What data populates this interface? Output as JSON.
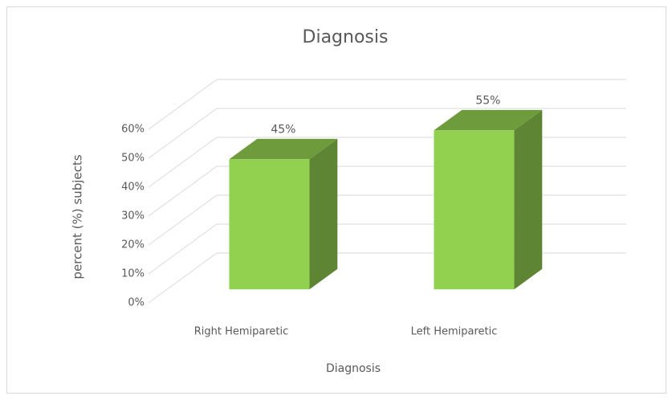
{
  "chart_data": {
    "type": "bar3d",
    "title": "Diagnosis",
    "categories": [
      "Right Hemiparetic",
      "Left Hemiparetic"
    ],
    "values": [
      45,
      55
    ],
    "value_labels": [
      "45%",
      "55%"
    ],
    "color": "#92d050",
    "x_label": "Diagnosis",
    "y_label": "percent (%) subjects",
    "ylim": [
      0,
      60
    ],
    "yticks": [
      {
        "value": 0,
        "label": "0%"
      },
      {
        "value": 10,
        "label": "10%"
      },
      {
        "value": 20,
        "label": "20%"
      },
      {
        "value": 30,
        "label": "30%"
      },
      {
        "value": 40,
        "label": "40%"
      },
      {
        "value": 50,
        "label": "50%"
      },
      {
        "value": 60,
        "label": "60%"
      }
    ],
    "grid": true
  }
}
